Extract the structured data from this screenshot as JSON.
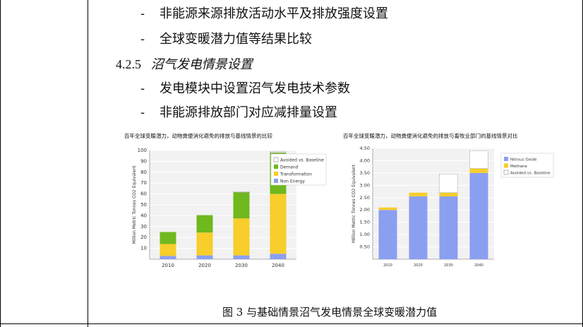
{
  "bullets_top": [
    {
      "dash": "-",
      "text": "非能源来源排放活动水平及排放强度设置"
    },
    {
      "dash": "-",
      "text": "全球变暖潜力值等结果比较"
    }
  ],
  "section": {
    "number": "4.2.5",
    "title": "沼气发电情景设置"
  },
  "bullets_bottom": [
    {
      "dash": "-",
      "text": "发电模块中设置沼气发电技术参数"
    },
    {
      "dash": "-",
      "text": "非能源排放部门对应减排量设置"
    }
  ],
  "caption": "图 3  与基础情景沼气发电情景全球变暖潜力值",
  "colors": {
    "avoided": "#ffffff",
    "demand": "#6fb81e",
    "transformation": "#f7ce2a",
    "non_energy": "#8b9ff1",
    "nitrous": "#8b9ff1",
    "methane": "#f7ce2a"
  },
  "chart_data": [
    {
      "type": "bar",
      "title": "百年全球变暖潜力，动物粪便消化避免的排放与基线情景的比较",
      "ylabel": "Million Metric Tonnes CO2 Equivalent",
      "xlabel": "",
      "categories": [
        "2010",
        "2020",
        "2030",
        "2040"
      ],
      "ylim": [
        0,
        100
      ],
      "yticks": [
        "10",
        "20",
        "30",
        "40",
        "50",
        "60",
        "70",
        "80",
        "90",
        "100"
      ],
      "stacked": true,
      "legend_position": "right",
      "series": [
        {
          "name": "Non Energy",
          "values": [
            3,
            3.5,
            3.5,
            5
          ]
        },
        {
          "name": "Transformation",
          "values": [
            11,
            21,
            34,
            55
          ]
        },
        {
          "name": "Demand",
          "values": [
            11,
            16,
            24,
            38
          ]
        },
        {
          "name": "Avoided vs. Baseline",
          "values": [
            0,
            0,
            0.5,
            1
          ]
        }
      ],
      "legend": [
        "Avoided vs. Baseline",
        "Demand",
        "Transformation",
        "Non Energy"
      ]
    },
    {
      "type": "bar",
      "title": "百年全球变暖潜力，动物粪便消化避免的排放与畜牧业部门的基线情景对比",
      "ylabel": "Million Metric Tonnes CO2 Equivalent",
      "xlabel": "",
      "categories": [
        "2010",
        "2020",
        "2030",
        "2040"
      ],
      "ylim": [
        0,
        4.5
      ],
      "yticks": [
        "0.50",
        "1.00",
        "1.50",
        "2.00",
        "2.50",
        "3.00",
        "3.50",
        "4.00",
        "4.50"
      ],
      "stacked": true,
      "legend_position": "right",
      "series": [
        {
          "name": "Nitrous Oxide",
          "values": [
            2.0,
            2.55,
            2.55,
            3.5
          ]
        },
        {
          "name": "Methane",
          "values": [
            0.1,
            0.15,
            0.15,
            0.18
          ]
        },
        {
          "name": "Avoided vs. Baseline",
          "values": [
            0,
            0,
            0.75,
            0.72
          ]
        }
      ],
      "legend": [
        "Nitrous Oxide",
        "Methane",
        "Avoided vs. Baseline"
      ]
    }
  ]
}
